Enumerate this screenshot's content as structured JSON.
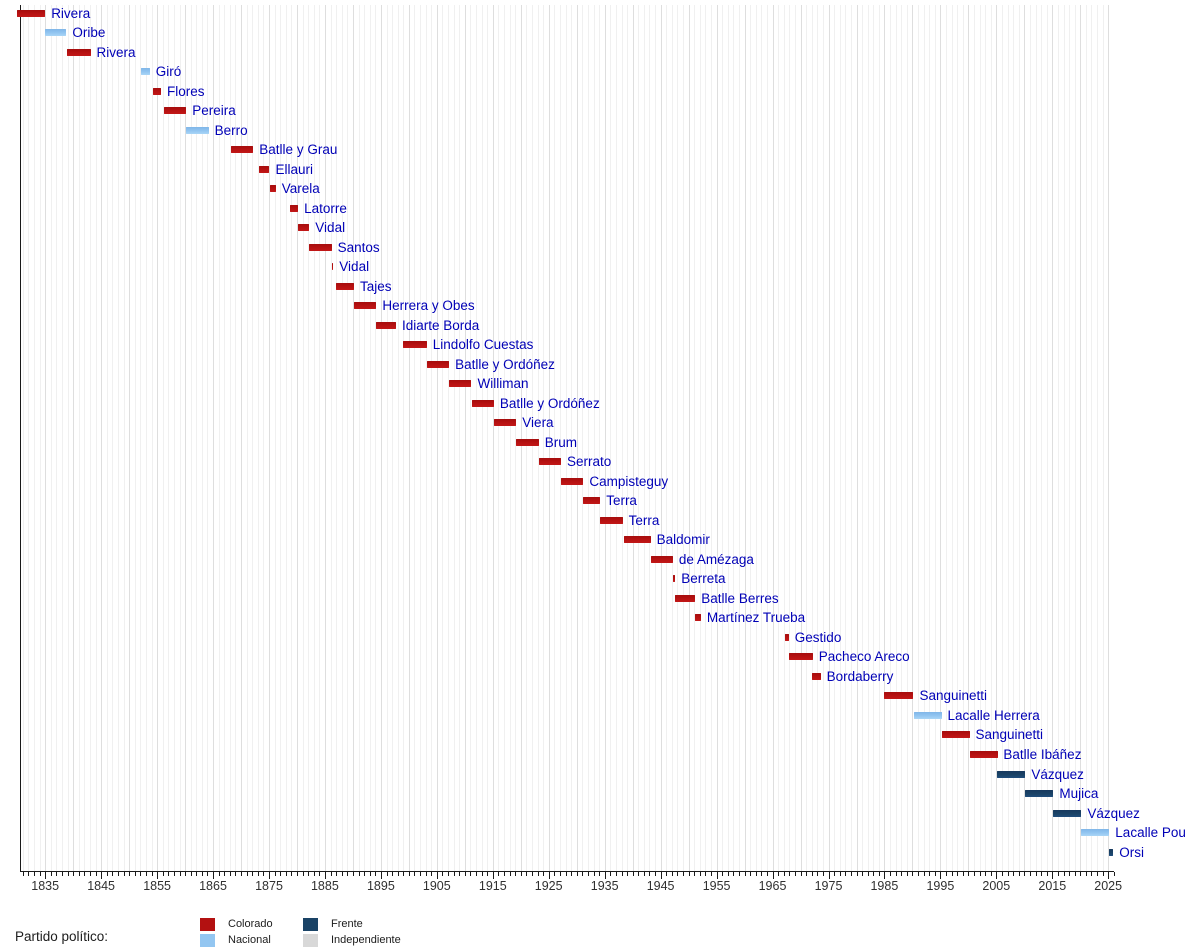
{
  "chart_data": {
    "type": "bar",
    "variant": "timeline-gantt",
    "title": "",
    "xlabel": "",
    "ylabel": "",
    "grid": "vertical-yearly",
    "legend_position": "bottom",
    "x_axis": {
      "min": 1830.5,
      "max": 2026,
      "major_tick_interval": 10,
      "minor_tick_interval": 1,
      "tick_labels": [
        "1835",
        "1845",
        "1855",
        "1865",
        "1875",
        "1885",
        "1895",
        "1905",
        "1915",
        "1925",
        "1935",
        "1945",
        "1955",
        "1965",
        "1975",
        "1985",
        "1995",
        "2005",
        "2015",
        "2025"
      ]
    },
    "party_colors": {
      "colorado": "#b31111",
      "nacional": "#93c6f1",
      "frente": "#1a4366",
      "independiente": "#d8d8d8"
    },
    "label_text_color": "#0000b6",
    "presidents": [
      {
        "name": "Rivera",
        "party": "colorado",
        "start": 1830.0,
        "end": 1835.0
      },
      {
        "name": "Oribe",
        "party": "nacional",
        "start": 1835.0,
        "end": 1838.8
      },
      {
        "name": "Rivera",
        "party": "colorado",
        "start": 1838.9,
        "end": 1843.1
      },
      {
        "name": "Giró",
        "party": "nacional",
        "start": 1852.2,
        "end": 1853.7
      },
      {
        "name": "Flores",
        "party": "colorado",
        "start": 1854.2,
        "end": 1855.7
      },
      {
        "name": "Pereira",
        "party": "colorado",
        "start": 1856.2,
        "end": 1860.2
      },
      {
        "name": "Berro",
        "party": "nacional",
        "start": 1860.2,
        "end": 1864.2
      },
      {
        "name": "Batlle y Grau",
        "party": "colorado",
        "start": 1868.2,
        "end": 1872.2
      },
      {
        "name": "Ellauri",
        "party": "colorado",
        "start": 1873.2,
        "end": 1875.1
      },
      {
        "name": "Varela",
        "party": "colorado",
        "start": 1875.1,
        "end": 1876.2
      },
      {
        "name": "Latorre",
        "party": "colorado",
        "start": 1878.7,
        "end": 1880.2
      },
      {
        "name": "Vidal",
        "party": "colorado",
        "start": 1880.2,
        "end": 1882.2
      },
      {
        "name": "Santos",
        "party": "colorado",
        "start": 1882.2,
        "end": 1886.2
      },
      {
        "name": "Vidal",
        "party": "colorado",
        "start": 1886.2,
        "end": 1886.5
      },
      {
        "name": "Tajes",
        "party": "colorado",
        "start": 1886.9,
        "end": 1890.2
      },
      {
        "name": "Herrera y Obes",
        "party": "colorado",
        "start": 1890.2,
        "end": 1894.2
      },
      {
        "name": "Idiarte Borda",
        "party": "colorado",
        "start": 1894.2,
        "end": 1897.7
      },
      {
        "name": "Lindolfo Cuestas",
        "party": "colorado",
        "start": 1899.0,
        "end": 1903.2
      },
      {
        "name": "Batlle y Ordóñez",
        "party": "colorado",
        "start": 1903.2,
        "end": 1907.2
      },
      {
        "name": "Williman",
        "party": "colorado",
        "start": 1907.2,
        "end": 1911.2
      },
      {
        "name": "Batlle y Ordóñez",
        "party": "colorado",
        "start": 1911.2,
        "end": 1915.2
      },
      {
        "name": "Viera",
        "party": "colorado",
        "start": 1915.2,
        "end": 1919.2
      },
      {
        "name": "Brum",
        "party": "colorado",
        "start": 1919.2,
        "end": 1923.2
      },
      {
        "name": "Serrato",
        "party": "colorado",
        "start": 1923.2,
        "end": 1927.2
      },
      {
        "name": "Campisteguy",
        "party": "colorado",
        "start": 1927.2,
        "end": 1931.2
      },
      {
        "name": "Terra",
        "party": "colorado",
        "start": 1931.2,
        "end": 1934.2
      },
      {
        "name": "Terra",
        "party": "colorado",
        "start": 1934.2,
        "end": 1938.2
      },
      {
        "name": "Baldomir",
        "party": "colorado",
        "start": 1938.4,
        "end": 1943.2
      },
      {
        "name": "de Amézaga",
        "party": "colorado",
        "start": 1943.2,
        "end": 1947.2
      },
      {
        "name": "Berreta",
        "party": "colorado",
        "start": 1947.2,
        "end": 1947.6
      },
      {
        "name": "Batlle Berres",
        "party": "colorado",
        "start": 1947.6,
        "end": 1951.2
      },
      {
        "name": "Martínez Trueba",
        "party": "colorado",
        "start": 1951.2,
        "end": 1952.2
      },
      {
        "name": "Gestido",
        "party": "colorado",
        "start": 1967.2,
        "end": 1967.9
      },
      {
        "name": "Pacheco Areco",
        "party": "colorado",
        "start": 1967.9,
        "end": 1972.2
      },
      {
        "name": "Bordaberry",
        "party": "colorado",
        "start": 1972.0,
        "end": 1973.6
      },
      {
        "name": "Sanguinetti",
        "party": "colorado",
        "start": 1985.0,
        "end": 1990.2
      },
      {
        "name": "Lacalle Herrera",
        "party": "nacional",
        "start": 1990.2,
        "end": 1995.2
      },
      {
        "name": "Sanguinetti",
        "party": "colorado",
        "start": 1995.2,
        "end": 2000.2
      },
      {
        "name": "Batlle Ibáñez",
        "party": "colorado",
        "start": 2000.2,
        "end": 2005.2
      },
      {
        "name": "Vázquez",
        "party": "frente",
        "start": 2005.2,
        "end": 2010.2
      },
      {
        "name": "Mujica",
        "party": "frente",
        "start": 2010.2,
        "end": 2015.2
      },
      {
        "name": "Vázquez",
        "party": "frente",
        "start": 2015.2,
        "end": 2020.2
      },
      {
        "name": "Lacalle Pou",
        "party": "nacional",
        "start": 2020.2,
        "end": 2025.2
      },
      {
        "name": "Orsi",
        "party": "frente",
        "start": 2025.2,
        "end": 2025.9
      }
    ],
    "legend": {
      "title": "Partido político:",
      "entries": [
        {
          "label": "Colorado",
          "party": "colorado"
        },
        {
          "label": "Nacional",
          "party": "nacional"
        },
        {
          "label": "Frente",
          "party": "frente"
        },
        {
          "label": "Independiente",
          "party": "independiente"
        }
      ]
    }
  }
}
